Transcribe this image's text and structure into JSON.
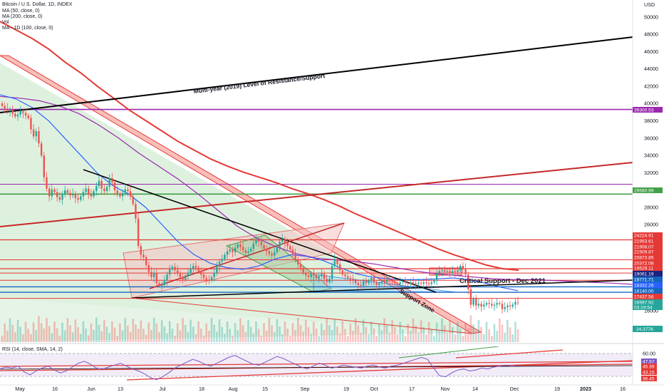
{
  "header": {
    "symbol_line": "Bitcoin / U.S. Dollar, 1D, INDEX",
    "ma50_line": "MA (50, close, 0)",
    "ma200_line": "MA (200, close, 0)",
    "vol_line": "Vol",
    "ma100_line": "MA - 1D (100, close, 0)"
  },
  "rsi_header": "RSI (14, close, SMA, 14, 2)",
  "colors": {
    "up": "#26a69a",
    "down": "#ef5350",
    "resistance": "#e53935",
    "ma50": "#2962ff",
    "ma100": "#9c27b0",
    "ma200": "#e53935",
    "trend_black": "#000000",
    "pattern_fill": "#f4c2c2",
    "triangle_fill": "#c8e6c9",
    "purple_level": "#9c27b0",
    "green_level": "#43a047",
    "blue_level": "#1565c0",
    "rsi_line": "#7e57c2"
  },
  "annotations": {
    "multi_year": "Multi-year (2019) Level of Resistance/Support",
    "critical_support": "Critical Support - Dec 2021",
    "support_zone": "Support Zone"
  },
  "chart_data": {
    "type": "candlestick",
    "title": "Bitcoin / U.S. Dollar, 1D, INDEX",
    "currency": "USD",
    "ylim": [
      14000,
      52000
    ],
    "y_ticks": [
      50000,
      48000,
      46000,
      44000,
      42000,
      40000,
      38000,
      36000,
      34000,
      32000,
      30000,
      28000,
      26000,
      16000
    ],
    "x_ticks": [
      "May",
      "16",
      "Jun",
      "13",
      "Jul",
      "18",
      "Aug",
      "15",
      "Sep",
      "19",
      "Oct",
      "17",
      "Nov",
      "14",
      "Dec",
      "19",
      "2023",
      "16"
    ],
    "price_labels": [
      {
        "value": 39300.53,
        "text": "39300.53",
        "color": "#9c27b0"
      },
      {
        "value": 29560.99,
        "text": "29560.99",
        "color": "#43a047"
      },
      {
        "value": 24224.91,
        "text": "24224.91",
        "color": "#e53935"
      },
      {
        "value": 21953.61,
        "text": "21953.61",
        "color": "#e53935"
      },
      {
        "value": 21908.07,
        "text": "21908.07",
        "color": "#e53935"
      },
      {
        "value": 21509.87,
        "text": "21509.87",
        "color": "#e53935"
      },
      {
        "value": 20873.85,
        "text": "20873.85",
        "color": "#e53935"
      },
      {
        "value": 20372.08,
        "text": "20372.08",
        "color": "#e53935"
      },
      {
        "value": 19529.11,
        "text": "19529.11",
        "color": "#e53935"
      },
      {
        "value": 19061.19,
        "text": "19061.19",
        "color": "#1a237e"
      },
      {
        "value": 18771.71,
        "text": "18771.71",
        "color": "#1565c0"
      },
      {
        "value": 18332.26,
        "text": "18332.26",
        "color": "#2962ff"
      },
      {
        "value": 18140.0,
        "text": "18140.00",
        "color": "#1565c0"
      },
      {
        "value": 17437.56,
        "text": "17437.56",
        "color": "#e53935"
      },
      {
        "value": 16997.92,
        "text": "16997.92",
        "color": "#26a69a"
      },
      {
        "value": 16640.0,
        "text": "03:19:54",
        "color": "#26a69a"
      }
    ],
    "volume_label": "24.377K",
    "rsi": {
      "ylim": [
        30,
        70
      ],
      "ticks": [
        60.0,
        36.45
      ],
      "labels": [
        47.57,
        45.39,
        43.15
      ],
      "label_texts": [
        "60.00",
        "47.57",
        "45.39",
        "43.15",
        "36.45"
      ]
    },
    "series": [
      {
        "name": "MA (50, close, 0)"
      },
      {
        "name": "MA (200, close, 0)"
      },
      {
        "name": "MA - 1D (100, close, 0)"
      }
    ],
    "closes": [
      39700,
      39400,
      39100,
      39250,
      38800,
      38500,
      38700,
      39100,
      38900,
      38600,
      38300,
      37000,
      36200,
      36800,
      35400,
      34000,
      31500,
      30200,
      29300,
      30100,
      29800,
      29200,
      28900,
      29600,
      30000,
      29700,
      29400,
      29600,
      29100,
      28900,
      29300,
      29800,
      30200,
      29600,
      29300,
      29900,
      30500,
      31100,
      30200,
      29900,
      30400,
      31400,
      30900,
      30000,
      29600,
      29300,
      29700,
      30100,
      29900,
      29300,
      28400,
      26700,
      23500,
      22500,
      22200,
      21300,
      20500,
      19900,
      20400,
      19200,
      18900,
      19000,
      19500,
      20200,
      20800,
      21100,
      20700,
      20300,
      19900,
      19600,
      20100,
      20400,
      20800,
      21200,
      21000,
      20600,
      20200,
      19800,
      19600,
      19500,
      19900,
      20400,
      21100,
      21700,
      22000,
      22500,
      22900,
      23100,
      22800,
      23300,
      23700,
      23400,
      23000,
      22700,
      22900,
      23200,
      23800,
      24200,
      24000,
      23600,
      23200,
      22900,
      22600,
      22400,
      22800,
      23400,
      24000,
      24300,
      23900,
      23500,
      23100,
      22600,
      21900,
      21400,
      21000,
      20400,
      20100,
      19900,
      20300,
      20100,
      19800,
      20000,
      20300,
      19700,
      19300,
      19700,
      21200,
      22000,
      21400,
      20700,
      20200,
      20000,
      19800,
      19700,
      19500,
      19200,
      19000,
      18900,
      19400,
      19200,
      19500,
      19800,
      19300,
      19000,
      19200,
      19500,
      19300,
      19600,
      19500,
      19400,
      19200,
      19100,
      19300,
      19400,
      19200,
      19100,
      19300,
      19200,
      19100,
      19250,
      19150,
      19300,
      19200,
      19100,
      19300,
      19500,
      20300,
      20600,
      20700,
      20500,
      20600,
      20400,
      20600,
      20500,
      20700,
      21200,
      20900,
      20200,
      18500,
      16700,
      17400,
      16600,
      16800,
      16500,
      16700,
      16900,
      16800,
      16600,
      16700,
      16900,
      16800,
      16200,
      16400,
      16600,
      16500,
      16700,
      17000,
      16980
    ],
    "ma50_path_values": [
      41000,
      40500,
      39500,
      38000,
      36000,
      34000,
      32000,
      30500,
      29500,
      28000,
      26000,
      24000,
      22500,
      21500,
      21000,
      20800,
      21200,
      22000,
      22500,
      22300,
      21800,
      21000,
      20300,
      19900,
      19700,
      19600,
      19600,
      19700,
      19800,
      19600,
      19200,
      18700,
      18332
    ],
    "ma100_path_values": [
      40800,
      40600,
      40300,
      39700,
      38800,
      37500,
      36000,
      34300,
      32800,
      31300,
      29600,
      27700,
      25800,
      24400,
      23400,
      22600,
      22100,
      21900,
      21700,
      21400,
      21000,
      20600,
      20300,
      20100,
      19900,
      19700,
      19600,
      19600,
      19500,
      19400,
      19300,
      19200,
      19061
    ],
    "ma200_path_values": [
      49500,
      48500,
      47500,
      46300,
      44800,
      43500,
      42000,
      40600,
      39200,
      38000,
      36800,
      35600,
      34600,
      33600,
      32800,
      32100,
      31500,
      30900,
      30200,
      29600,
      28900,
      28100,
      27200,
      26400,
      25600,
      24800,
      24000,
      23200,
      22500,
      21900,
      21300,
      20873,
      20700
    ],
    "rsi_values": [
      44,
      46,
      45,
      47,
      41,
      38,
      42,
      45,
      47,
      43,
      40,
      42,
      46,
      50,
      52,
      49,
      45,
      44,
      46,
      48,
      50,
      47,
      44,
      42,
      39,
      35,
      33,
      36,
      40,
      45,
      48,
      51,
      54,
      52,
      49,
      47,
      50,
      53,
      56,
      58,
      55,
      52,
      49,
      48,
      51,
      54,
      57,
      55,
      52,
      49,
      46,
      44,
      47,
      50,
      48,
      45,
      46,
      48,
      47,
      46,
      45,
      47,
      48,
      46,
      45,
      47,
      48,
      50,
      52,
      54,
      56,
      54,
      45,
      37,
      36,
      40,
      43,
      44,
      42,
      43,
      45,
      44,
      46,
      47,
      48,
      47,
      47.57
    ]
  }
}
